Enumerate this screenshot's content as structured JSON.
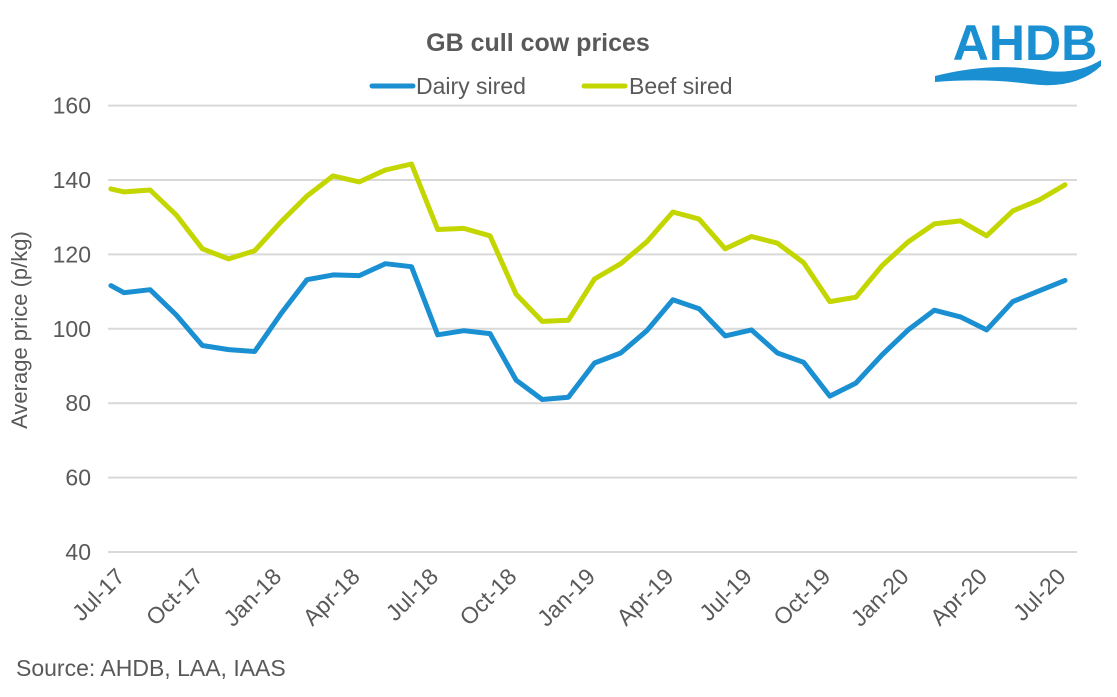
{
  "chart_data": {
    "type": "line",
    "title": "GB cull cow prices",
    "xlabel": "",
    "ylabel": "Average price (p/kg)",
    "ylim": [
      40,
      160
    ],
    "yticks": [
      40,
      60,
      80,
      100,
      120,
      140,
      160
    ],
    "grid": true,
    "legend_position": "top-center",
    "x_unit": "months since Jul-17",
    "xlim": [
      -0.5,
      36
    ],
    "xtick_labels": [
      {
        "m": 0,
        "label": "Jul-17"
      },
      {
        "m": 3,
        "label": "Oct-17"
      },
      {
        "m": 6,
        "label": "Jan-18"
      },
      {
        "m": 9,
        "label": "Apr-18"
      },
      {
        "m": 12,
        "label": "Jul-18"
      },
      {
        "m": 15,
        "label": "Oct-18"
      },
      {
        "m": 18,
        "label": "Jan-19"
      },
      {
        "m": 21,
        "label": "Apr-19"
      },
      {
        "m": 24,
        "label": "Jul-19"
      },
      {
        "m": 27,
        "label": "Oct-19"
      },
      {
        "m": 30,
        "label": "Jan-20"
      },
      {
        "m": 33,
        "label": "Apr-20"
      },
      {
        "m": 36,
        "label": "Jul-20"
      }
    ],
    "x": [
      -0.5,
      0,
      1,
      2,
      3,
      4,
      5,
      6,
      7,
      8,
      9,
      10,
      11,
      12,
      13,
      14,
      15,
      16,
      17,
      18,
      19,
      20,
      21,
      22,
      23,
      24,
      25,
      26,
      27,
      28,
      29,
      30,
      31,
      32,
      33,
      34,
      35,
      36
    ],
    "series": [
      {
        "name": "Dairy sired",
        "color": "#1a8fd1",
        "values": [
          111.6,
          109.7,
          110.5,
          103.7,
          95.5,
          94.4,
          93.9,
          104.0,
          113.2,
          114.5,
          114.3,
          117.5,
          116.7,
          98.4,
          99.5,
          98.7,
          86.2,
          81.0,
          81.6,
          90.8,
          93.5,
          99.5,
          107.8,
          105.4,
          98.1,
          99.7,
          93.5,
          91.0,
          81.9,
          85.4,
          93.0,
          99.7,
          105.0,
          103.2,
          99.7,
          107.3,
          110.2,
          113.0
        ]
      },
      {
        "name": "Beef sired",
        "color": "#c4d600",
        "values": [
          137.6,
          136.8,
          137.3,
          130.6,
          121.5,
          118.8,
          121.0,
          128.7,
          135.7,
          141.1,
          139.5,
          142.7,
          144.3,
          126.7,
          127.0,
          125.0,
          109.3,
          102.0,
          102.3,
          113.4,
          117.5,
          123.4,
          131.4,
          129.5,
          121.5,
          124.8,
          123.0,
          117.8,
          107.3,
          108.5,
          117.0,
          123.4,
          128.2,
          129.0,
          125.0,
          131.7,
          134.6,
          138.7
        ]
      }
    ]
  },
  "source": "Source: AHDB, LAA, IAAS",
  "logo": {
    "text": "AHDB",
    "color": "#1a8fd1"
  }
}
